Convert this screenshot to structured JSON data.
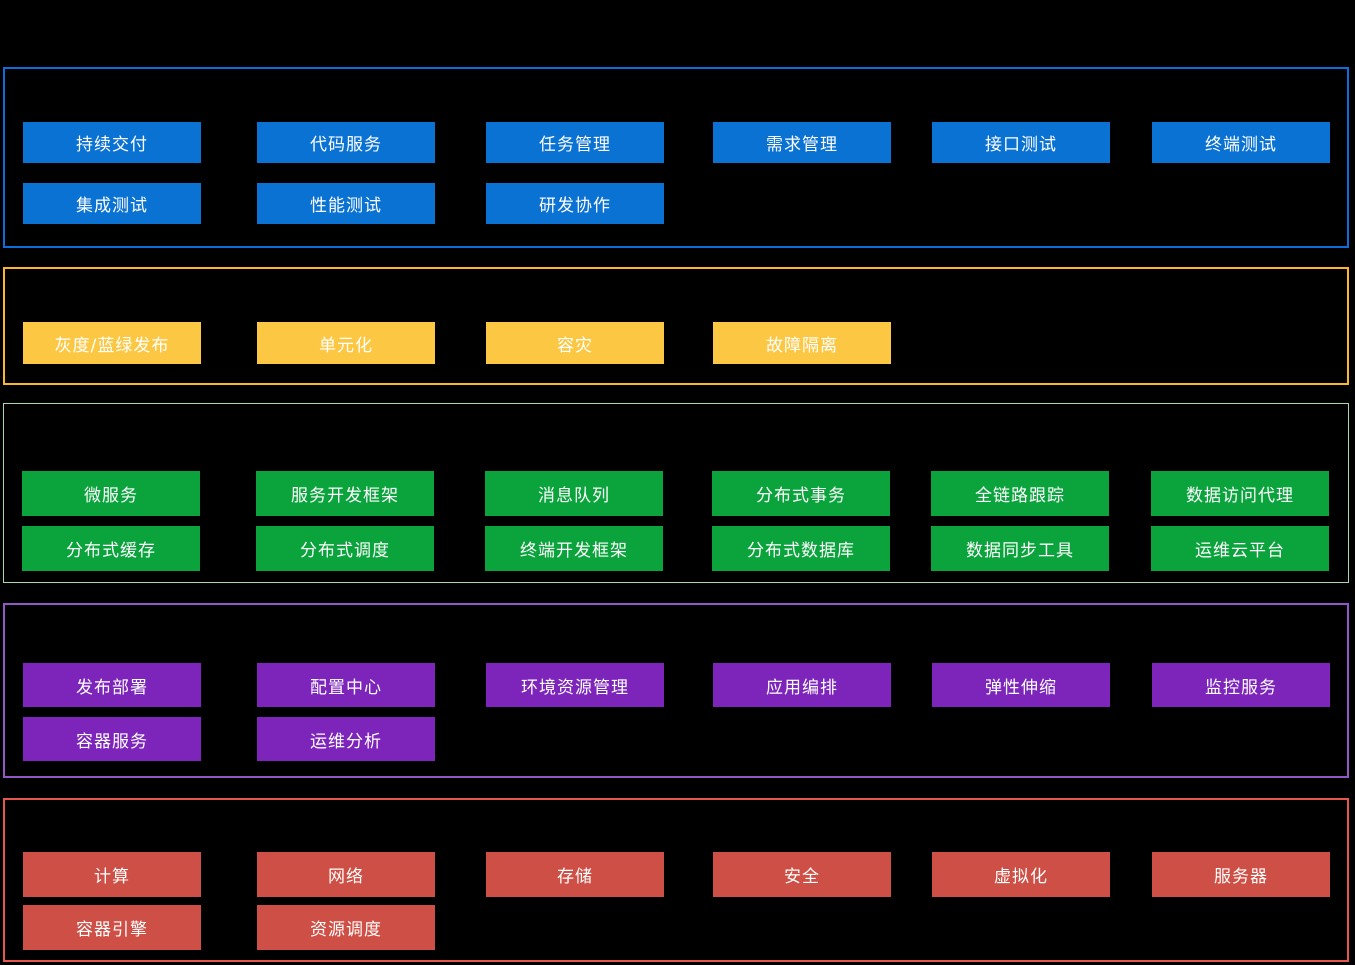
{
  "page": {
    "background_color": "#000000",
    "text_color": "#ffffff"
  },
  "sections": [
    {
      "id": "devops-toolchain",
      "border_color": "#0d6edb",
      "box_color": "#0a72d2",
      "text_color": "#ffffff",
      "rows": [
        [
          "持续交付",
          "代码服务",
          "任务管理",
          "需求管理",
          "接口测试",
          "终端测试"
        ],
        [
          "集成测试",
          "性能测试",
          "研发协作"
        ]
      ]
    },
    {
      "id": "high-availability",
      "border_color": "#fcb728",
      "box_color": "#fcc844",
      "text_color": "#ffffff",
      "rows": [
        [
          "灰度/蓝绿发布",
          "单元化",
          "容灾",
          "故障隔离"
        ]
      ]
    },
    {
      "id": "distributed-middleware",
      "border_color": "#a9d8ac",
      "box_color": "#0aa33c",
      "text_color": "#ffffff",
      "rows": [
        [
          "微服务",
          "服务开发框架",
          "消息队列",
          "分布式事务",
          "全链路跟踪",
          "数据访问代理"
        ],
        [
          "分布式缓存",
          "分布式调度",
          "终端开发框架",
          "分布式数据库",
          "数据同步工具",
          "运维云平台"
        ]
      ]
    },
    {
      "id": "ops-platform",
      "border_color": "#9256c7",
      "box_color": "#7d24bb",
      "text_color": "#ffffff",
      "rows": [
        [
          "发布部署",
          "配置中心",
          "环境资源管理",
          "应用编排",
          "弹性伸缩",
          "监控服务"
        ],
        [
          "容器服务",
          "运维分析"
        ]
      ]
    },
    {
      "id": "infrastructure",
      "border_color": "#e6564b",
      "box_color": "#cd4f45",
      "text_color": "#ffffff",
      "rows": [
        [
          "计算",
          "网络",
          "存储",
          "安全",
          "虚拟化",
          "服务器"
        ],
        [
          "容器引擎",
          "资源调度"
        ]
      ]
    }
  ]
}
